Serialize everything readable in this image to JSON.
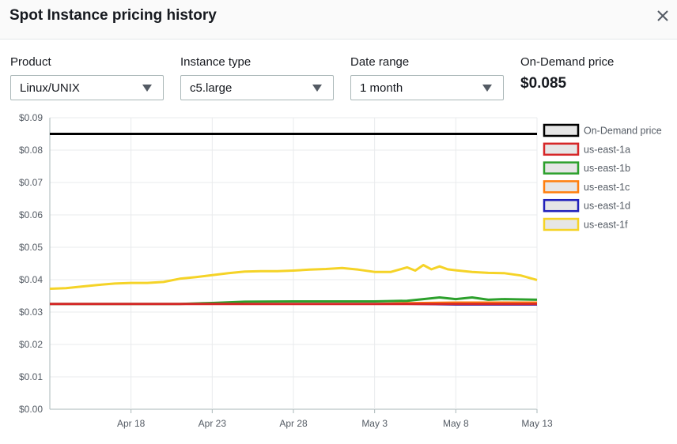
{
  "dialog": {
    "title": "Spot Instance pricing history",
    "close_icon": "close-icon"
  },
  "filters": {
    "product": {
      "label": "Product",
      "value": "Linux/UNIX"
    },
    "instance_type": {
      "label": "Instance type",
      "value": "c5.large"
    },
    "date_range": {
      "label": "Date range",
      "value": "1 month"
    }
  },
  "on_demand": {
    "label": "On-Demand price",
    "value": "$0.085"
  },
  "chart_data": {
    "type": "line",
    "title": "",
    "xlabel": "",
    "ylabel": "",
    "ylim": [
      0,
      0.09
    ],
    "y_ticks": [
      "$0.00",
      "$0.01",
      "$0.02",
      "$0.03",
      "$0.04",
      "$0.05",
      "$0.06",
      "$0.07",
      "$0.08",
      "$0.09"
    ],
    "x_range": [
      "Apr 13",
      "May 13"
    ],
    "x_ticks": [
      {
        "label": "Apr 18",
        "day": 5
      },
      {
        "label": "Apr 23",
        "day": 10
      },
      {
        "label": "Apr 28",
        "day": 15
      },
      {
        "label": "May 3",
        "day": 20
      },
      {
        "label": "May 8",
        "day": 25
      },
      {
        "label": "May 13",
        "day": 30
      }
    ],
    "grid": true,
    "legend_position": "right",
    "series": [
      {
        "name": "On-Demand price",
        "color": "#000000",
        "x": [
          0,
          30
        ],
        "y": [
          0.085,
          0.085
        ]
      },
      {
        "name": "us-east-1a",
        "color": "#d62728",
        "x": [
          0,
          5,
          10,
          15,
          20,
          25,
          30
        ],
        "y": [
          0.0325,
          0.0325,
          0.0325,
          0.0325,
          0.0325,
          0.0325,
          0.0325
        ]
      },
      {
        "name": "us-east-1b",
        "color": "#2ca02c",
        "x": [
          0,
          8,
          10,
          12,
          15,
          20,
          22,
          23,
          24,
          25,
          26,
          27,
          28,
          30
        ],
        "y": [
          0.0325,
          0.0325,
          0.0328,
          0.0332,
          0.0333,
          0.0333,
          0.0335,
          0.034,
          0.0345,
          0.034,
          0.0345,
          0.0338,
          0.034,
          0.0338
        ]
      },
      {
        "name": "us-east-1c",
        "color": "#ff7f0e",
        "x": [
          0,
          20,
          22,
          25,
          28,
          30
        ],
        "y": [
          0.0325,
          0.0325,
          0.0328,
          0.033,
          0.033,
          0.033
        ]
      },
      {
        "name": "us-east-1d",
        "color": "#2222bb",
        "x": [
          0,
          20,
          22,
          25,
          30
        ],
        "y": [
          0.0325,
          0.0325,
          0.0325,
          0.0323,
          0.0323
        ]
      },
      {
        "name": "us-east-1f",
        "color": "#f5d327",
        "x": [
          0,
          1,
          2,
          3,
          4,
          5,
          6,
          7,
          8,
          9,
          10,
          11,
          12,
          13,
          14,
          15,
          16,
          17,
          18,
          19,
          20,
          21,
          22,
          22.5,
          23,
          23.5,
          24,
          24.5,
          25,
          26,
          27,
          28,
          29,
          30
        ],
        "y": [
          0.0372,
          0.0374,
          0.0379,
          0.0384,
          0.0388,
          0.039,
          0.039,
          0.0393,
          0.0403,
          0.0408,
          0.0414,
          0.042,
          0.0425,
          0.0426,
          0.0426,
          0.0428,
          0.0431,
          0.0433,
          0.0436,
          0.0431,
          0.0424,
          0.0424,
          0.0438,
          0.0428,
          0.0445,
          0.0432,
          0.0441,
          0.0432,
          0.0429,
          0.0424,
          0.0421,
          0.042,
          0.0413,
          0.0399
        ]
      }
    ]
  }
}
